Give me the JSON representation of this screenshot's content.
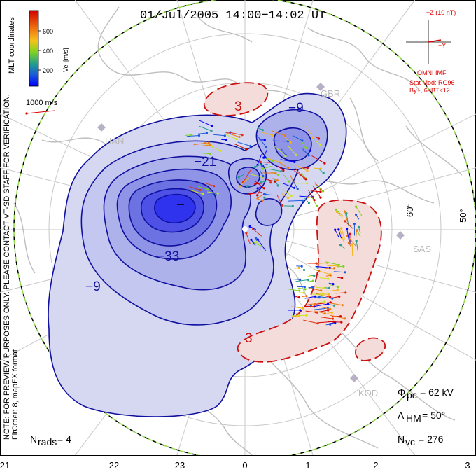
{
  "title": "01/Jul/2005 14:00−14:02 UT",
  "side_notes": {
    "note": "NOTE: FOR PREVIEW PURPOSES ONLY. PLEASE CONTACT VT-SD STAFF FOR VERIFICATION.",
    "fit": "FitOrder: 8, mapEX format",
    "coords": "MLT coordinates"
  },
  "colorbar": {
    "label": "Vel [m/s]",
    "ticks": [
      "600",
      "400",
      "200"
    ],
    "colors": [
      "#0000ff",
      "#1a5adc",
      "#23a08a",
      "#7ed321",
      "#cfe225",
      "#f6b51a",
      "#f07a10",
      "#e03010",
      "#d40000"
    ]
  },
  "vector_scale": {
    "label": "1000 m/s",
    "color": "#dd0000"
  },
  "imf": {
    "z_label": "+Z (10 nT)",
    "y_label": "+Y",
    "model_lines": [
      "OMNI IMF",
      "Stat Mod: RG96",
      "By+, 6<BT<12"
    ]
  },
  "stations": [
    "GBR",
    "HAN",
    "SAS",
    "KOD"
  ],
  "lat_labels": [
    "60°",
    "50°"
  ],
  "mlt_ticks": [
    "21",
    "22",
    "23",
    "0",
    "1",
    "2",
    "3"
  ],
  "contour_labels": [
    "−9",
    "−21",
    "−33",
    "−9",
    "3",
    "3"
  ],
  "params": {
    "phi_label": "Φ",
    "phi_sub": "pc",
    "phi_value": "= 62 kV",
    "lambda_label": "Λ",
    "lambda_sub": "HM",
    "lambda_value": "= 50°",
    "nvc_label": "N",
    "nvc_sub": "vc",
    "nvc_value": "= 276",
    "nrads_label": "N",
    "nrads_sub": "rads",
    "nrads_value": "= 4"
  },
  "chart_data": {
    "type": "other",
    "title": "01/Jul/2005 14:00−14:02 UT",
    "coordinate_system": "MLT coordinates",
    "colorbar": {
      "label": "Vel [m/s]",
      "range": [
        0,
        700
      ],
      "ticks": [
        200,
        400,
        600
      ]
    },
    "potential_contours_kV": [
      -33,
      -21,
      -9,
      3
    ],
    "cross_polar_cap_potential_kV": 62,
    "heppner_maynard_boundary_deg": 50,
    "num_vectors": 276,
    "num_radars": 4,
    "statistical_model": "RG96",
    "imf_condition": "By+, 6<BT<12",
    "mlt_axis": [
      "21",
      "22",
      "23",
      "0",
      "1",
      "2",
      "3"
    ],
    "latitude_rings_labeled": [
      "60°",
      "50°"
    ],
    "vector_scale": "1000 m/s"
  }
}
